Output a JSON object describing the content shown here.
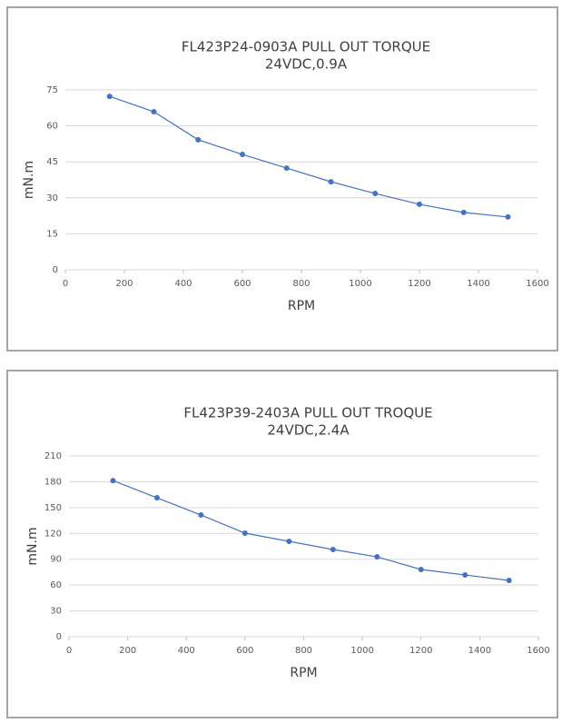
{
  "chart_data": [
    {
      "type": "line",
      "title": "FL423P24-0903A PULL OUT TORQUE",
      "subtitle": "24VDC,0.9A",
      "x_label": "RPM",
      "y_label": "mN.m",
      "x": [
        150,
        300,
        450,
        600,
        750,
        900,
        1050,
        1200,
        1350,
        1500
      ],
      "values": [
        72.3,
        65.9,
        54.2,
        48.1,
        42.4,
        36.7,
        31.8,
        27.3,
        23.9,
        22.0
      ],
      "color": "#4472c4",
      "xlim": [
        0,
        1600
      ],
      "xticks": [
        0,
        200,
        400,
        600,
        800,
        1000,
        1200,
        1400,
        1600
      ],
      "ylim": [
        0,
        75
      ],
      "yticks": [
        0,
        15,
        30,
        45,
        60,
        75
      ],
      "grid": true
    },
    {
      "type": "line",
      "title": "FL423P39-2403A PULL OUT TROQUE",
      "subtitle": "24VDC,2.4A",
      "x_label": "RPM",
      "y_label": "mN.m",
      "x": [
        150,
        300,
        450,
        600,
        750,
        900,
        1050,
        1200,
        1350,
        1500
      ],
      "values": [
        181.4,
        161.4,
        141.4,
        120.3,
        110.8,
        101.3,
        92.8,
        78.1,
        71.7,
        65.4
      ],
      "color": "#4472c4",
      "xlim": [
        0,
        1600
      ],
      "xticks": [
        0,
        200,
        400,
        600,
        800,
        1000,
        1200,
        1400,
        1600
      ],
      "ylim": [
        0,
        210
      ],
      "yticks": [
        0,
        30,
        60,
        90,
        120,
        150,
        180,
        210
      ],
      "grid": true
    }
  ]
}
